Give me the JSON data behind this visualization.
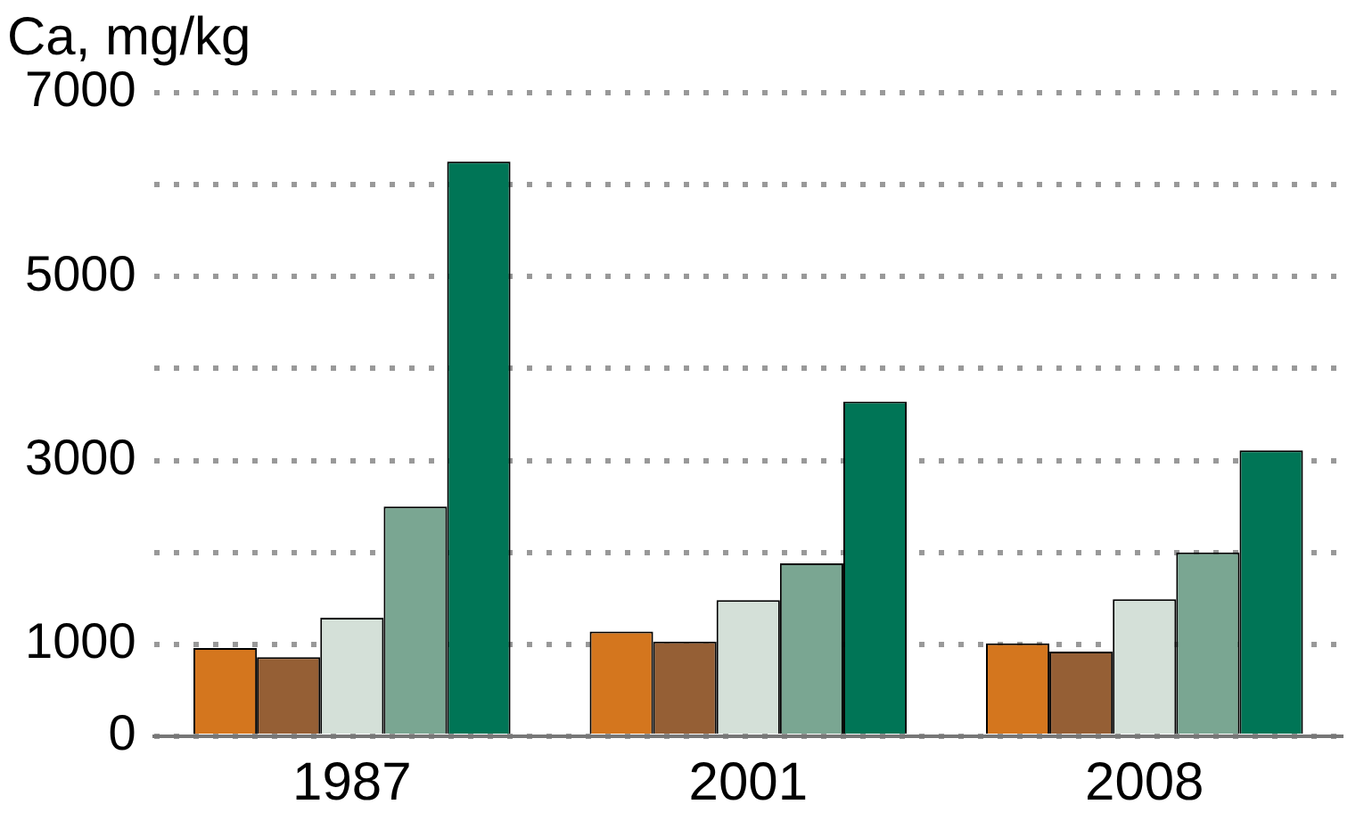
{
  "chart_data": {
    "type": "bar",
    "title": "Ca, mg/kg",
    "categories": [
      "1987",
      "2001",
      "2008"
    ],
    "series": [
      {
        "color": "#d4761e",
        "values": [
          960,
          1140,
          1010
        ]
      },
      {
        "color": "#955f35",
        "values": [
          860,
          1030,
          920
        ]
      },
      {
        "color": "#d4e0d8",
        "values": [
          1290,
          1480,
          1490
        ]
      },
      {
        "color": "#7aa692",
        "values": [
          2500,
          1880,
          2000
        ]
      },
      {
        "color": "#007556",
        "values": [
          6250,
          3640,
          3110
        ]
      }
    ],
    "ylim": [
      0,
      7000
    ],
    "yticks": [
      0,
      1000,
      {
        "value": 2000,
        "label": null
      },
      3000,
      {
        "value": 4000,
        "label": null
      },
      5000,
      {
        "value": 6000,
        "label": null
      },
      7000
    ],
    "grid": "y",
    "legend": false
  }
}
